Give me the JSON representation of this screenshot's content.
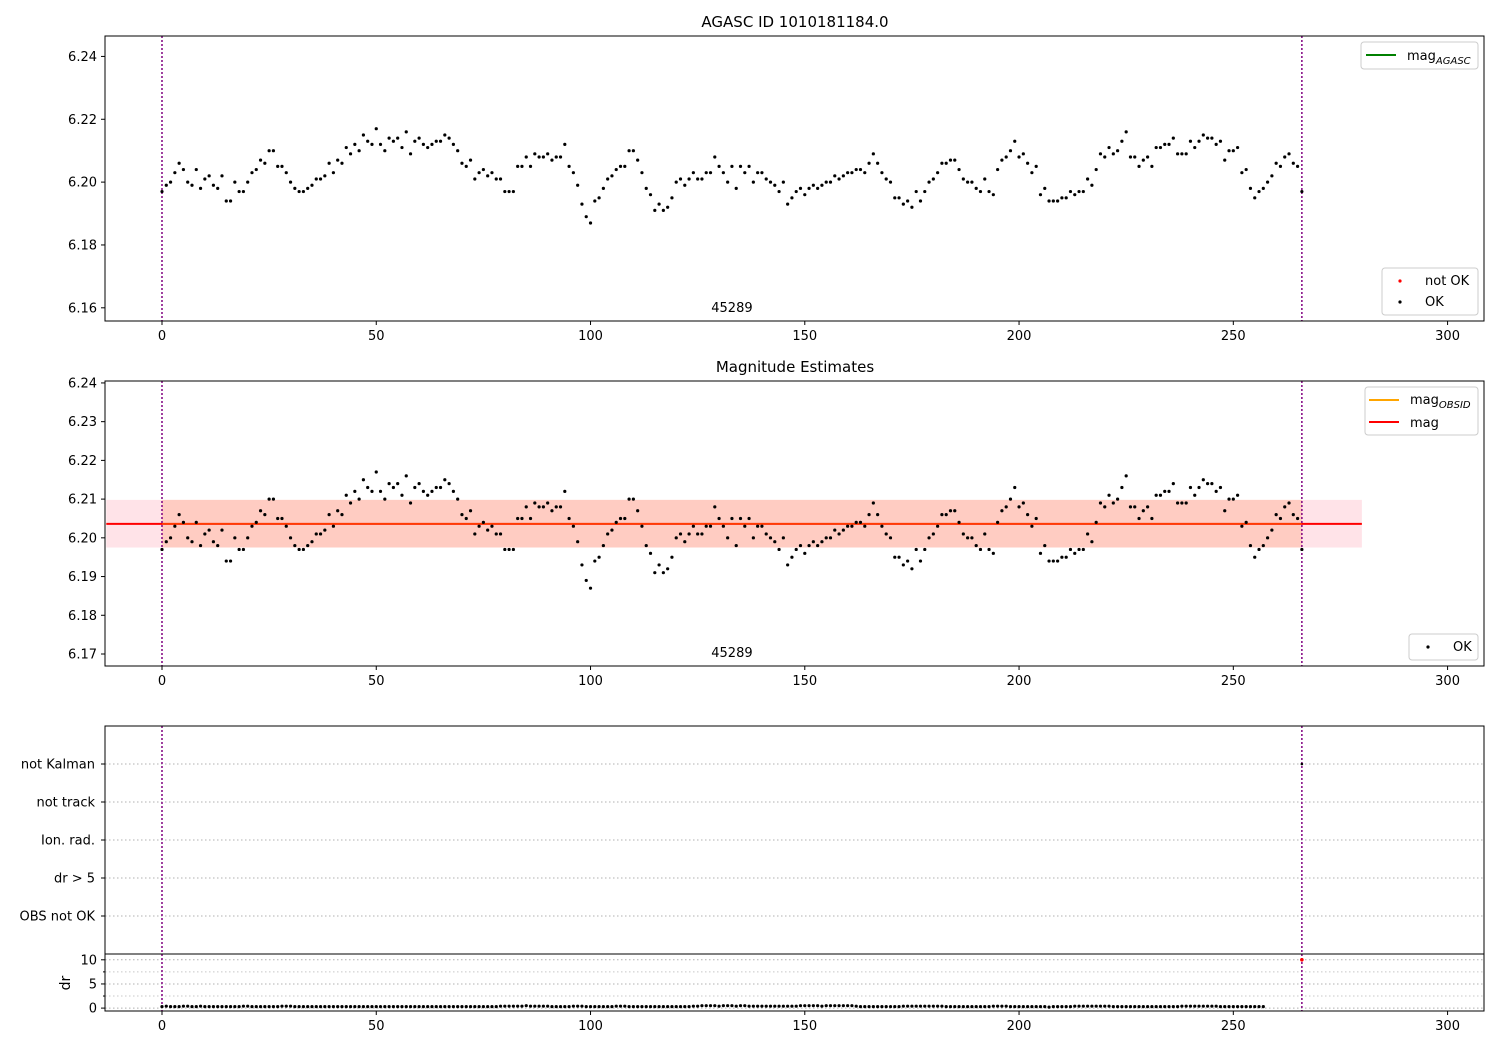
{
  "figure": {
    "title": "AGASC ID 1010181184.0",
    "obsid_label": "45289",
    "colors": {
      "ok": "#000000",
      "not_ok": "#ff0000",
      "mag_agasc": "#008000",
      "mag_obsid": "#ffa500",
      "mag": "#ff0000",
      "band_outer": "#ffc0cb",
      "band_inner": "#ffa07a",
      "obs_boundary": "#800080"
    }
  },
  "chart_data": [
    {
      "type": "scatter",
      "title": "AGASC ID 1010181184.0",
      "xlabel": "",
      "ylabel": "",
      "xlim": [
        -13.3,
        308.5
      ],
      "ylim": [
        6.1558,
        6.2465
      ],
      "xticks": [
        "0",
        "50",
        "100",
        "150",
        "200",
        "250",
        "300"
      ],
      "yticks": [
        "6.16",
        "6.18",
        "6.20",
        "6.22",
        "6.24"
      ],
      "grid": false,
      "obs_boundaries": [
        0,
        266
      ],
      "annotation": "45289",
      "legends": [
        {
          "placement": "top-right",
          "entries": [
            {
              "label": "mag",
              "sub": "AGASC",
              "kind": "line",
              "color": "#008000"
            }
          ]
        },
        {
          "placement": "bottom-right",
          "entries": [
            {
              "label": "not OK",
              "kind": "dot",
              "color": "#ff0000"
            },
            {
              "label": "OK",
              "kind": "dot",
              "color": "#000000"
            }
          ]
        }
      ],
      "series": [
        {
          "name": "OK",
          "color": "#000000",
          "source": "shared_mag"
        }
      ]
    },
    {
      "type": "scatter",
      "title": "Magnitude Estimates",
      "xlabel": "",
      "ylabel": "",
      "xlim": [
        -13.3,
        308.5
      ],
      "ylim": [
        6.1669,
        6.2405
      ],
      "xticks": [
        "0",
        "50",
        "100",
        "150",
        "200",
        "250",
        "300"
      ],
      "yticks": [
        "6.17",
        "6.18",
        "6.19",
        "6.20",
        "6.21",
        "6.22",
        "6.23",
        "6.24"
      ],
      "grid": false,
      "obs_boundaries": [
        0,
        266
      ],
      "annotation": "45289",
      "mean_mag": 6.2036,
      "band": {
        "x_range": [
          -13,
          280
        ],
        "y_range": [
          6.1975,
          6.2098
        ]
      },
      "legends": [
        {
          "placement": "top-right",
          "entries": [
            {
              "label": "mag",
              "sub": "OBSID",
              "kind": "line",
              "color": "#ffa500"
            },
            {
              "label": "mag",
              "kind": "line",
              "color": "#ff0000"
            }
          ]
        },
        {
          "placement": "bottom-right",
          "entries": [
            {
              "label": "OK",
              "kind": "dot",
              "color": "#000000"
            }
          ]
        }
      ],
      "series": [
        {
          "name": "OK",
          "color": "#000000",
          "source": "shared_mag"
        }
      ]
    },
    {
      "type": "scatter",
      "title": "",
      "xlabel": "",
      "ylabel": "",
      "xlim": [
        -13.3,
        308.5
      ],
      "categories": [
        "OBS not OK",
        "dr > 5",
        "Ion. rad.",
        "not track",
        "not Kalman"
      ],
      "grid": true,
      "obs_boundaries": [
        0,
        266
      ],
      "flagged": [
        {
          "category": "not Kalman",
          "x": 266
        }
      ]
    },
    {
      "type": "scatter",
      "title": "",
      "xlabel": "",
      "ylabel": "dr",
      "xlim": [
        -13.3,
        308.5
      ],
      "ylim": [
        -0.6,
        11.2
      ],
      "xticks": [
        "0",
        "50",
        "100",
        "150",
        "200",
        "250",
        "300"
      ],
      "yticks": [
        "0",
        "5",
        "10"
      ],
      "grid": true,
      "obs_boundaries": [
        0,
        266
      ],
      "series": [
        {
          "name": "dr",
          "color": "#000000",
          "source": "shared_dr"
        }
      ],
      "outliers": [
        {
          "x": 266,
          "y": 10,
          "color": "#ff0000"
        }
      ]
    }
  ],
  "shared_mag": {
    "x_start": 0,
    "values": [
      6.197,
      6.199,
      6.2,
      6.203,
      6.206,
      6.204,
      6.2,
      6.199,
      6.204,
      6.198,
      6.201,
      6.202,
      6.199,
      6.198,
      6.202,
      6.194,
      6.194,
      6.2,
      6.197,
      6.197,
      6.2,
      6.203,
      6.204,
      6.207,
      6.206,
      6.21,
      6.21,
      6.205,
      6.205,
      6.203,
      6.2,
      6.198,
      6.197,
      6.197,
      6.198,
      6.199,
      6.201,
      6.201,
      6.202,
      6.206,
      6.203,
      6.207,
      6.206,
      6.211,
      6.209,
      6.212,
      6.21,
      6.215,
      6.213,
      6.212,
      6.217,
      6.212,
      6.21,
      6.214,
      6.213,
      6.214,
      6.211,
      6.216,
      6.209,
      6.213,
      6.214,
      6.212,
      6.211,
      6.212,
      6.213,
      6.213,
      6.215,
      6.214,
      6.212,
      6.21,
      6.206,
      6.205,
      6.207,
      6.201,
      6.203,
      6.204,
      6.202,
      6.203,
      6.201,
      6.201,
      6.197,
      6.197,
      6.197,
      6.205,
      6.205,
      6.208,
      6.205,
      6.209,
      6.208,
      6.208,
      6.209,
      6.207,
      6.208,
      6.208,
      6.212,
      6.205,
      6.203,
      6.199,
      6.193,
      6.189,
      6.187,
      6.194,
      6.195,
      6.198,
      6.201,
      6.202,
      6.204,
      6.205,
      6.205,
      6.21,
      6.21,
      6.207,
      6.203,
      6.198,
      6.196,
      6.191,
      6.193,
      6.191,
      6.192,
      6.195,
      6.2,
      6.201,
      6.199,
      6.201,
      6.203,
      6.201,
      6.201,
      6.203,
      6.203,
      6.208,
      6.205,
      6.203,
      6.2,
      6.205,
      6.198,
      6.205,
      6.203,
      6.205,
      6.2,
      6.203,
      6.203,
      6.201,
      6.2,
      6.199,
      6.197,
      6.2,
      6.193,
      6.195,
      6.197,
      6.198,
      6.196,
      6.198,
      6.199,
      6.198,
      6.199,
      6.2,
      6.2,
      6.202,
      6.201,
      6.202,
      6.203,
      6.203,
      6.204,
      6.204,
      6.203,
      6.206,
      6.209,
      6.206,
      6.203,
      6.201,
      6.2,
      6.195,
      6.195,
      6.193,
      6.194,
      6.192,
      6.197,
      6.194,
      6.197,
      6.2,
      6.201,
      6.203,
      6.206,
      6.206,
      6.207,
      6.207,
      6.204,
      6.201,
      6.2,
      6.2,
      6.198,
      6.197,
      6.201,
      6.197,
      6.196,
      6.204,
      6.207,
      6.208,
      6.21,
      6.213,
      6.208,
      6.209,
      6.206,
      6.203,
      6.205,
      6.196,
      6.198,
      6.194,
      6.194,
      6.194,
      6.195,
      6.195,
      6.197,
      6.196,
      6.197,
      6.197,
      6.201,
      6.199,
      6.204,
      6.209,
      6.208,
      6.211,
      6.209,
      6.21,
      6.213,
      6.216,
      6.208,
      6.208,
      6.205,
      6.207,
      6.208,
      6.205,
      6.211,
      6.211,
      6.212,
      6.212,
      6.214,
      6.209,
      6.209,
      6.209,
      6.213,
      6.211,
      6.213,
      6.215,
      6.214,
      6.214,
      6.212,
      6.213,
      6.207,
      6.21,
      6.21,
      6.211,
      6.203,
      6.204,
      6.198,
      6.195,
      6.197,
      6.198,
      6.2,
      6.202,
      6.206,
      6.205,
      6.208,
      6.209,
      6.206,
      6.205,
      6.197
    ]
  },
  "shared_dr": {
    "x_start": 0,
    "values": [
      0.3,
      0.4,
      0.3,
      0.3,
      0.3,
      0.4,
      0.4,
      0.3,
      0.3,
      0.4,
      0.3,
      0.3,
      0.3,
      0.3,
      0.3,
      0.3,
      0.3,
      0.3,
      0.3,
      0.4,
      0.4,
      0.3,
      0.3,
      0.3,
      0.3,
      0.3,
      0.3,
      0.3,
      0.4,
      0.4,
      0.4,
      0.3,
      0.3,
      0.3,
      0.3,
      0.3,
      0.3,
      0.3,
      0.3,
      0.3,
      0.3,
      0.3,
      0.3,
      0.3,
      0.3,
      0.3,
      0.3,
      0.3,
      0.3,
      0.3,
      0.3,
      0.3,
      0.3,
      0.3,
      0.3,
      0.3,
      0.3,
      0.3,
      0.3,
      0.3,
      0.3,
      0.3,
      0.3,
      0.3,
      0.3,
      0.3,
      0.3,
      0.3,
      0.3,
      0.3,
      0.3,
      0.3,
      0.3,
      0.3,
      0.3,
      0.3,
      0.3,
      0.3,
      0.3,
      0.4,
      0.4,
      0.4,
      0.4,
      0.4,
      0.4,
      0.5,
      0.4,
      0.4,
      0.4,
      0.4,
      0.4,
      0.3,
      0.3,
      0.3,
      0.3,
      0.3,
      0.4,
      0.4,
      0.4,
      0.3,
      0.3,
      0.3,
      0.3,
      0.3,
      0.3,
      0.3,
      0.4,
      0.4,
      0.4,
      0.3,
      0.3,
      0.3,
      0.3,
      0.3,
      0.3,
      0.3,
      0.3,
      0.3,
      0.3,
      0.3,
      0.3,
      0.3,
      0.3,
      0.3,
      0.4,
      0.4,
      0.5,
      0.5,
      0.5,
      0.5,
      0.4,
      0.5,
      0.5,
      0.5,
      0.4,
      0.5,
      0.5,
      0.4,
      0.4,
      0.4,
      0.4,
      0.4,
      0.4,
      0.4,
      0.4,
      0.4,
      0.4,
      0.4,
      0.4,
      0.5,
      0.5,
      0.5,
      0.5,
      0.5,
      0.4,
      0.5,
      0.5,
      0.5,
      0.5,
      0.5,
      0.5,
      0.5,
      0.4,
      0.3,
      0.3,
      0.3,
      0.3,
      0.3,
      0.3,
      0.3,
      0.3,
      0.3,
      0.3,
      0.4,
      0.4,
      0.4,
      0.4,
      0.4,
      0.4,
      0.4,
      0.4,
      0.4,
      0.4,
      0.3,
      0.3,
      0.3,
      0.3,
      0.3,
      0.3,
      0.3,
      0.3,
      0.3,
      0.3,
      0.3,
      0.4,
      0.4,
      0.4,
      0.4,
      0.3,
      0.3,
      0.3,
      0.3,
      0.3,
      0.3,
      0.3,
      0.3,
      0.3,
      0.2,
      0.3,
      0.3,
      0.3,
      0.3,
      0.3,
      0.4,
      0.4,
      0.4,
      0.4,
      0.4,
      0.4,
      0.4,
      0.4,
      0.4,
      0.3,
      0.3,
      0.3,
      0.3,
      0.3,
      0.3,
      0.3,
      0.3,
      0.3,
      0.3,
      0.3,
      0.3,
      0.3,
      0.3,
      0.3,
      0.3,
      0.4,
      0.4,
      0.4,
      0.4,
      0.4,
      0.4,
      0.4,
      0.4,
      0.4,
      0.3,
      0.3,
      0.3,
      0.3,
      0.3,
      0.3,
      0.3,
      0.3,
      0.3,
      0.3,
      0.3
    ]
  }
}
